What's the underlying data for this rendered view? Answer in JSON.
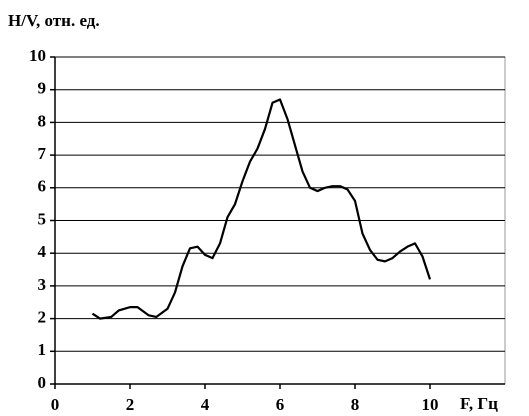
{
  "chart_data": {
    "type": "line",
    "y_label": "H/V, отн. ед.",
    "x_label": "F, Гц",
    "x": [
      1.0,
      1.2,
      1.5,
      1.7,
      2.0,
      2.2,
      2.5,
      2.7,
      3.0,
      3.2,
      3.4,
      3.6,
      3.8,
      4.0,
      4.2,
      4.4,
      4.6,
      4.8,
      5.0,
      5.2,
      5.4,
      5.6,
      5.8,
      6.0,
      6.2,
      6.4,
      6.6,
      6.8,
      7.0,
      7.2,
      7.4,
      7.6,
      7.8,
      8.0,
      8.2,
      8.4,
      8.6,
      8.8,
      9.0,
      9.2,
      9.4,
      9.6,
      9.8,
      10.0
    ],
    "series": [
      {
        "name": "H/V",
        "color": "#000000",
        "values": [
          2.15,
          2.0,
          2.05,
          2.25,
          2.35,
          2.35,
          2.1,
          2.05,
          2.3,
          2.8,
          3.6,
          4.15,
          4.2,
          3.95,
          3.85,
          4.3,
          5.1,
          5.5,
          6.2,
          6.8,
          7.2,
          7.8,
          8.6,
          8.7,
          8.1,
          7.3,
          6.5,
          6.0,
          5.9,
          6.0,
          6.05,
          6.05,
          5.95,
          5.6,
          4.6,
          4.1,
          3.8,
          3.75,
          3.85,
          4.05,
          4.2,
          4.3,
          3.9,
          3.2
        ]
      }
    ],
    "xlim": [
      0,
      12
    ],
    "xticks": [
      0,
      2,
      4,
      6,
      8,
      10
    ],
    "ylim": [
      0,
      10
    ],
    "yticks": [
      0,
      1,
      2,
      3,
      4,
      5,
      6,
      7,
      8,
      9,
      10
    ],
    "grid": true
  }
}
